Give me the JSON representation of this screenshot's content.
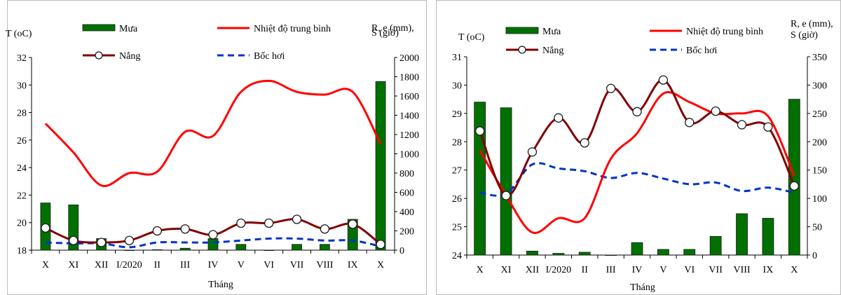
{
  "chart_data": [
    {
      "type": "line",
      "xlabel": "Tháng",
      "ylabel_left": "T (oC)",
      "ylabel_right": "R, e (mm), S (giờ)",
      "categories": [
        "X",
        "XI",
        "XII",
        "I/2020",
        "II",
        "III",
        "IV",
        "V",
        "VI",
        "VII",
        "VIII",
        "IX",
        "X"
      ],
      "ylim_left": [
        18,
        32
      ],
      "yticks_left": [
        "18",
        "20",
        "22",
        "24",
        "26",
        "28",
        "30",
        "32"
      ],
      "ylim_right": [
        0,
        2000
      ],
      "yticks_right": [
        "0",
        "200",
        "400",
        "600",
        "800",
        "1000",
        "1200",
        "1400",
        "1600",
        "1800",
        "2000"
      ],
      "grid": false,
      "legend": [
        "Mưa",
        "Nhiệt độ trung bình",
        "Nắng",
        "Bốc hơi"
      ],
      "series": [
        {
          "name": "Mưa",
          "kind": "bar",
          "axis": "right",
          "color": "#007000",
          "values": [
            490,
            470,
            120,
            0,
            5,
            20,
            120,
            60,
            0,
            60,
            60,
            320,
            1750
          ]
        },
        {
          "name": "Nhiệt độ trung bình",
          "kind": "line",
          "axis": "left",
          "color": "#ff0000",
          "values": [
            27.2,
            25.1,
            22.7,
            23.6,
            23.7,
            26.6,
            26.3,
            29.5,
            30.3,
            29.5,
            29.3,
            29.5,
            25.7
          ]
        },
        {
          "name": "Nắng",
          "kind": "line-marker",
          "axis": "right",
          "color": "#800000",
          "values": [
            230,
            100,
            80,
            100,
            200,
            220,
            160,
            280,
            280,
            320,
            220,
            270,
            60
          ]
        },
        {
          "name": "Bốc hơi",
          "kind": "dashed",
          "axis": "right",
          "color": "#0033cc",
          "values": [
            80,
            70,
            70,
            30,
            80,
            80,
            80,
            100,
            120,
            120,
            100,
            100,
            40
          ]
        }
      ]
    },
    {
      "type": "line",
      "xlabel": "Tháng",
      "ylabel_left": "T (oC)",
      "ylabel_right": "R, e (mm), S (giờ)",
      "categories": [
        "X",
        "XI",
        "XII",
        "I/2020",
        "II",
        "III",
        "IV",
        "V",
        "VI",
        "VII",
        "VIII",
        "IX",
        "X"
      ],
      "ylim_left": [
        24,
        31
      ],
      "yticks_left": [
        "24",
        "25",
        "26",
        "27",
        "28",
        "29",
        "30",
        "31"
      ],
      "ylim_right": [
        0,
        350
      ],
      "yticks_right": [
        "0",
        "50",
        "100",
        "150",
        "200",
        "250",
        "300",
        "350"
      ],
      "grid": false,
      "legend": [
        "Mưa",
        "Nhiệt độ trung bình",
        "Nắng",
        "Bốc hơi"
      ],
      "series": [
        {
          "name": "Mưa",
          "kind": "bar",
          "axis": "right",
          "color": "#007000",
          "values": [
            270,
            260,
            7,
            3,
            5,
            0,
            22,
            10,
            10,
            33,
            73,
            65,
            275
          ]
        },
        {
          "name": "Nhiệt độ trung bình",
          "kind": "line",
          "axis": "left",
          "color": "#ff0000",
          "values": [
            27.7,
            26.1,
            24.8,
            25.3,
            25.3,
            27.4,
            28.3,
            29.7,
            29.4,
            29.0,
            29.0,
            28.9,
            26.8
          ]
        },
        {
          "name": "Nắng",
          "kind": "line-marker",
          "axis": "right",
          "color": "#800000",
          "values": [
            219,
            105,
            182,
            242,
            198,
            294,
            253,
            309,
            234,
            254,
            230,
            226,
            122
          ]
        },
        {
          "name": "Bốc hơi",
          "kind": "dashed",
          "axis": "right",
          "color": "#0033cc",
          "values": [
            110,
            108,
            160,
            153,
            148,
            136,
            145,
            135,
            125,
            128,
            113,
            119,
            110
          ]
        }
      ]
    }
  ]
}
